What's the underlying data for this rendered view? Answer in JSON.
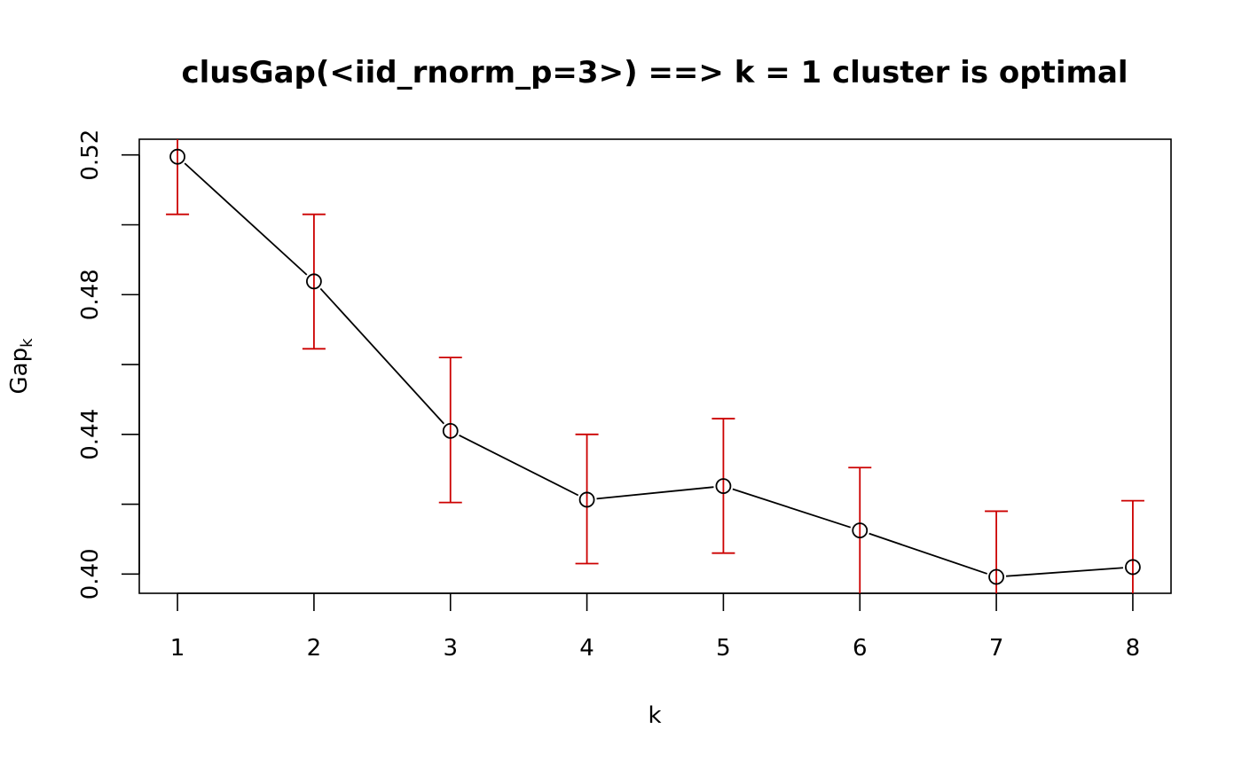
{
  "chart_data": {
    "type": "line",
    "title": "clusGap(<iid_rnorm_p=3>)  ==> k = 1  cluster is optimal",
    "xlabel": "k",
    "ylabel": "Gap",
    "ylabel_subscript": "k",
    "x": [
      1,
      2,
      3,
      4,
      5,
      6,
      7,
      8
    ],
    "x_ticks": [
      "1",
      "2",
      "3",
      "4",
      "5",
      "6",
      "7",
      "8"
    ],
    "y_ticks": [
      "0.40",
      "0.44",
      "0.48",
      "0.52"
    ],
    "y_tick_values": [
      0.4,
      0.44,
      0.48,
      0.52
    ],
    "y_minor_ticks": [
      0.42,
      0.46,
      0.5
    ],
    "xlim": [
      0.72,
      8.28
    ],
    "ylim": [
      0.3945,
      0.5245
    ],
    "grid": false,
    "series": [
      {
        "values": [
          0.5195,
          0.4838,
          0.441,
          0.4213,
          0.4252,
          0.4125,
          0.3992,
          0.402
        ],
        "error_low": [
          0.503,
          0.4645,
          0.4205,
          0.403,
          0.406,
          0.3945,
          0.3945,
          0.3945
        ],
        "error_high": [
          0.5245,
          0.503,
          0.462,
          0.44,
          0.4445,
          0.4305,
          0.418,
          0.421
        ],
        "line_color": "#000000",
        "error_color": "#cc0000"
      }
    ]
  }
}
